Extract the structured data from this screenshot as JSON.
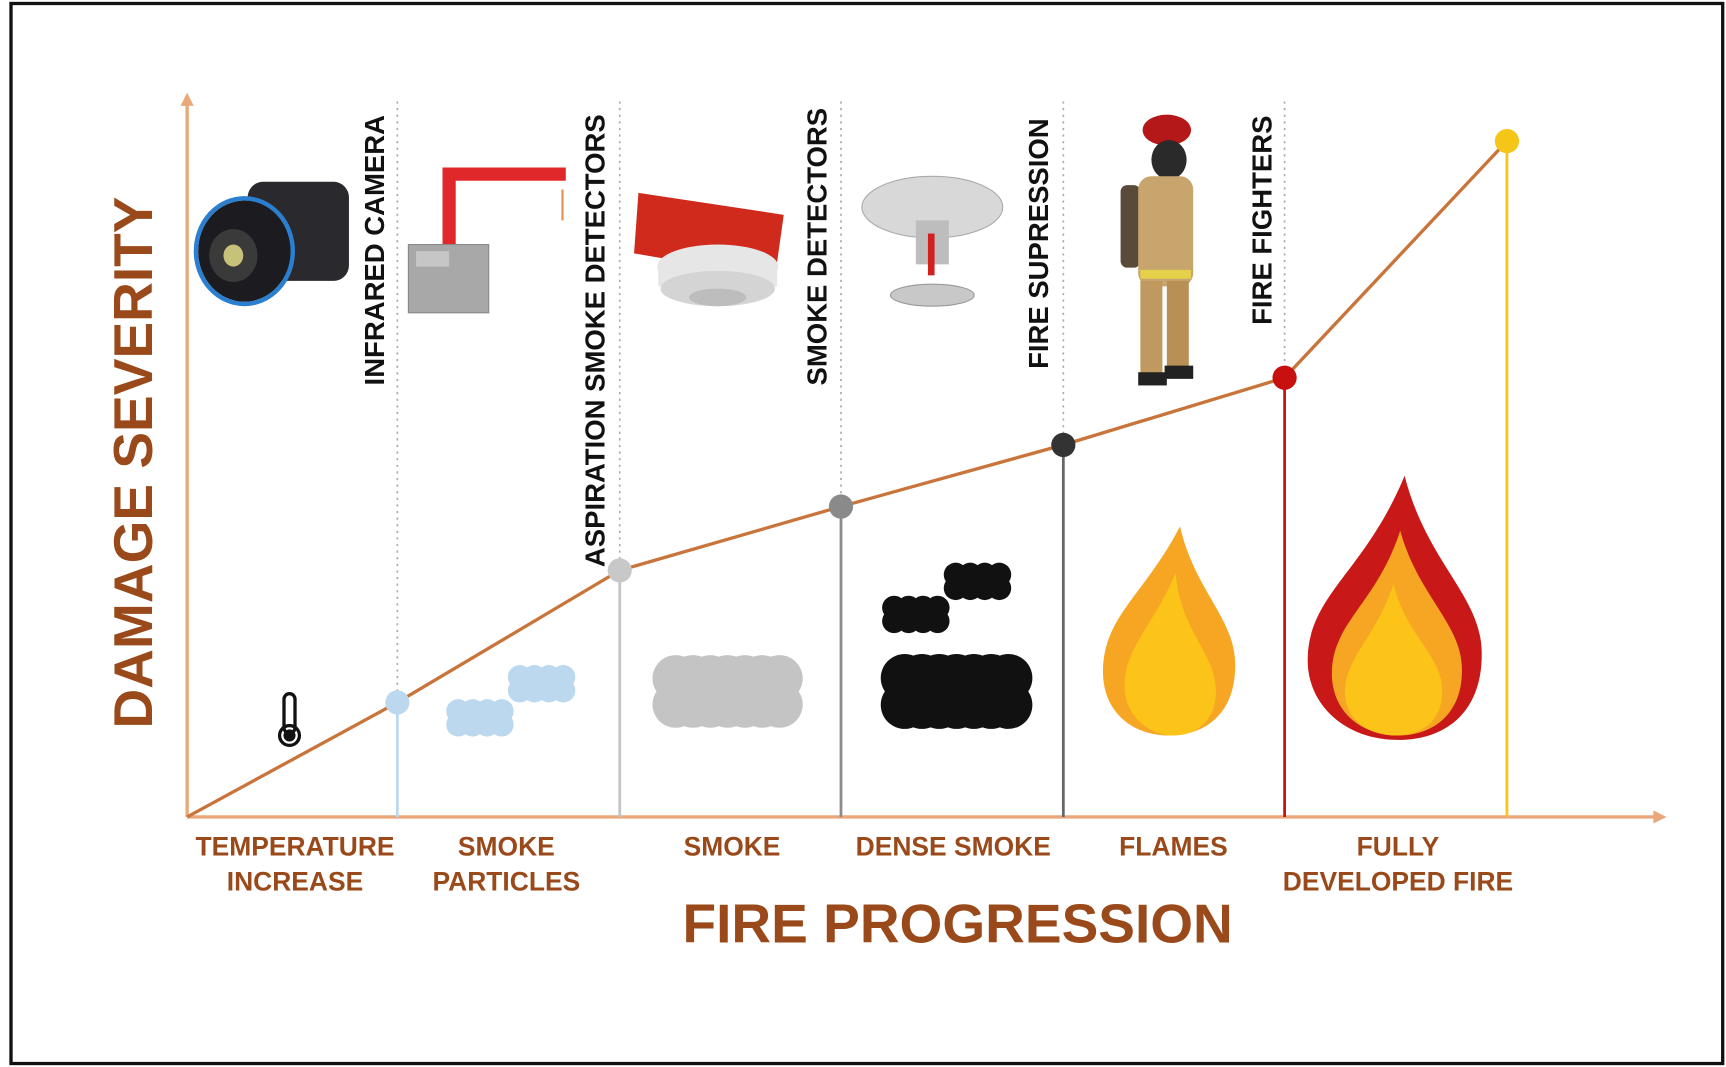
{
  "axes": {
    "y_title": "DAMAGE SEVERITY",
    "x_title": "FIRE PROGRESSION"
  },
  "detectors": [
    "INFRARED CAMERA",
    "ASPIRATION SMOKE DETECTORS",
    "SMOKE DETECTORS",
    "FIRE SUPRESSION",
    "FIRE FIGHTERS"
  ],
  "stages": [
    [
      "TEMPERATURE",
      "INCREASE"
    ],
    [
      "SMOKE",
      "PARTICLES"
    ],
    [
      "SMOKE"
    ],
    [
      "DENSE SMOKE"
    ],
    [
      "FLAMES"
    ],
    [
      "FULLY",
      "DEVELOPED FIRE"
    ]
  ]
}
